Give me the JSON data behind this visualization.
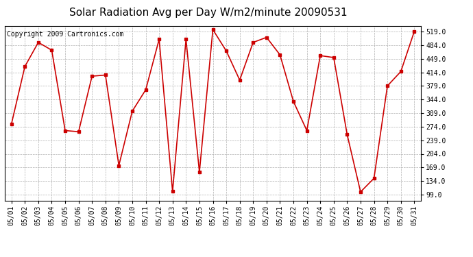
{
  "title": "Solar Radiation Avg per Day W/m2/minute 20090531",
  "copyright": "Copyright 2009 Cartronics.com",
  "dates": [
    "05/01",
    "05/02",
    "05/03",
    "05/04",
    "05/05",
    "05/06",
    "05/07",
    "05/08",
    "05/09",
    "05/10",
    "05/11",
    "05/12",
    "05/13",
    "05/14",
    "05/15",
    "05/16",
    "05/17",
    "05/18",
    "05/19",
    "05/20",
    "05/21",
    "05/22",
    "05/23",
    "05/24",
    "05/25",
    "05/26",
    "05/27",
    "05/28",
    "05/29",
    "05/30",
    "05/31"
  ],
  "values": [
    281,
    429,
    491,
    471,
    264,
    261,
    404,
    407,
    174,
    314,
    369,
    499,
    107,
    499,
    157,
    524,
    469,
    394,
    491,
    504,
    459,
    339,
    264,
    457,
    452,
    254,
    106,
    141,
    379,
    416,
    519
  ],
  "line_color": "#cc0000",
  "marker_color": "#cc0000",
  "background_color": "#ffffff",
  "plot_bg_color": "#ffffff",
  "grid_color": "#b0b0b0",
  "yticks": [
    99.0,
    134.0,
    169.0,
    204.0,
    239.0,
    274.0,
    309.0,
    344.0,
    379.0,
    414.0,
    449.0,
    484.0,
    519.0
  ],
  "ymin": 84.0,
  "ymax": 534.0,
  "title_fontsize": 11,
  "copyright_fontsize": 7,
  "tick_fontsize": 7
}
